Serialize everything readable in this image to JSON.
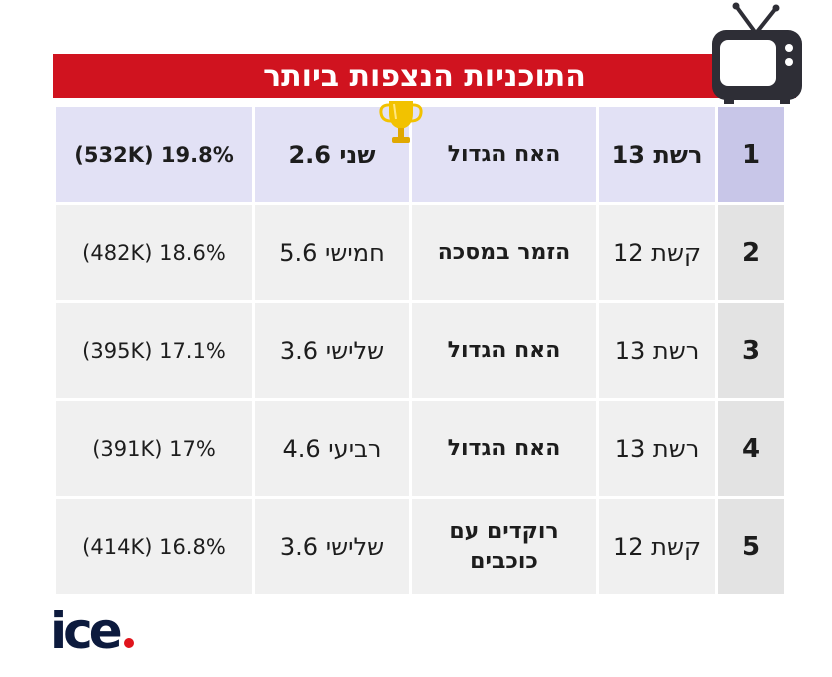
{
  "title": "התוכניות הנצפות ביותר",
  "rows": [
    {
      "rank": "1",
      "channel": "רשת 13",
      "show": "האח הגדול",
      "day": "שני 2.6",
      "rating": "(532K) 19.8%"
    },
    {
      "rank": "2",
      "channel": "קשת 12",
      "show": "הזמר במסכה",
      "day": "חמישי 5.6",
      "rating": "(482K) 18.6%"
    },
    {
      "rank": "3",
      "channel": "רשת 13",
      "show": "האח הגדול",
      "day": "שלישי 3.6",
      "rating": "(395K) 17.1%"
    },
    {
      "rank": "4",
      "channel": "רשת 13",
      "show": "האח הגדול",
      "day": "רביעי 4.6",
      "rating": "(391K) 17%"
    },
    {
      "rank": "5",
      "channel": "קשת 12",
      "show": "רוקדים עם כוכבים",
      "day": "שלישי 3.6",
      "rating": "(414K) 16.8%"
    }
  ],
  "logo": "ice",
  "colors": {
    "title_bg": "#d0131f",
    "top_row_bg": "#e2e1f5",
    "top_rank_bg": "#c8c6e8",
    "row_bg": "#f0f0f0",
    "rank_bg": "#e3e3e3",
    "logo_dot": "#e0141c",
    "trophy": "#f2c200"
  },
  "icons": {
    "tv": "tv-icon",
    "trophy": "trophy-icon"
  }
}
